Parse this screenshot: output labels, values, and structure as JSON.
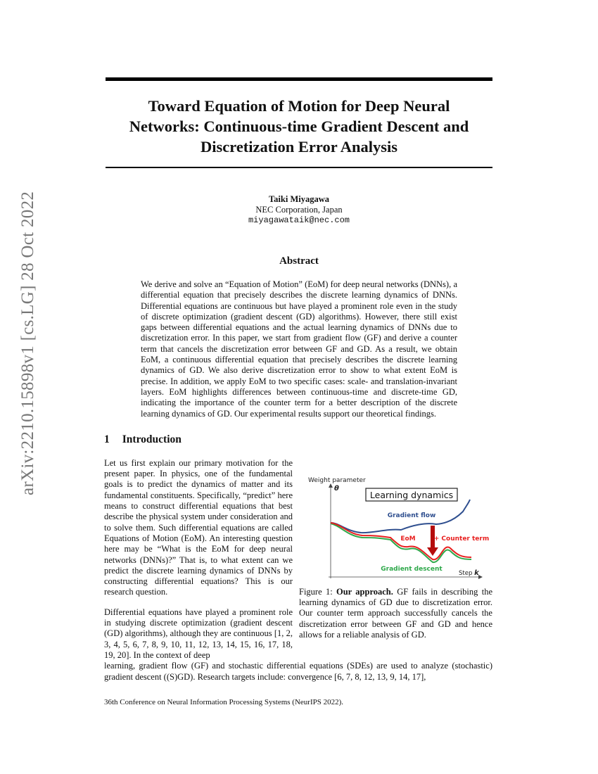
{
  "title_lines": [
    "Toward Equation of Motion for Deep Neural",
    "Networks: Continuous-time Gradient Descent and",
    "Discretization Error Analysis"
  ],
  "arxiv_stamp": "arXiv:2210.15898v1  [cs.LG]  28 Oct 2022",
  "author": {
    "name": "Taiki Miyagawa",
    "affiliation": "NEC Corporation, Japan",
    "email": "miyagawataik@nec.com"
  },
  "abstract": {
    "heading": "Abstract",
    "text": "We derive and solve an “Equation of Motion” (EoM) for deep neural networks (DNNs), a differential equation that precisely describes the discrete learning dynamics of DNNs. Differential equations are continuous but have played a prominent role even in the study of discrete optimization (gradient descent (GD) algorithms). However, there still exist gaps between differential equations and the actual learning dynamics of DNNs due to discretization error. In this paper, we start from gradient flow (GF) and derive a counter term that cancels the discretization error between GF and GD. As a result, we obtain EoM, a continuous differential equation that precisely describes the discrete learning dynamics of GD. We also derive discretization error to show to what extent EoM is precise. In addition, we apply EoM to two specific cases: scale- and translation-invariant layers. EoM highlights differences between continuous-time and discrete-time GD, indicating the importance of the counter term for a better description of the discrete learning dynamics of GD. Our experimental results support our theoretical findings."
  },
  "section": {
    "number": "1",
    "title": "Introduction"
  },
  "intro": {
    "p1": "Let us first explain our primary motivation for the present paper. In physics, one of the fundamental goals is to predict the dynamics of matter and its fundamental constituents. Specifically, “predict” here means to construct differential equations that best describe the physical system under consideration and to solve them. Such differential equations are called Equations of Motion (EoM). An interesting question here may be “What is the EoM for deep neural networks (DNNs)?” That is, to what extent can we predict the discrete learning dynamics of DNNs by constructing differential equations? This is our research question.",
    "p2a": "Differential equations have played a prominent role in studying discrete optimization (gradient descent (GD) algorithms), although they are continuous [1, 2, 3, 4, 5, 6, 7, 8, 9, 10, 11, 12, 13, 14, 15, 16, 17, 18, 19, 20]. In the context of deep",
    "p2b": "learning, gradient flow (GF) and stochastic differential equations (SDEs) are used to analyze (stochastic) gradient descent ((S)GD). Research targets include: convergence [6, 7, 8, 12, 13, 9, 14, 17],"
  },
  "figure": {
    "y_axis_label": "Weight parameter",
    "theta": "θ",
    "box_label": "Learning dynamics",
    "gf_label": "Gradient flow",
    "eom_label": "EoM",
    "counter_label": "+ Counter term",
    "gd_label": "Gradient descent",
    "x_axis_label": "Step ",
    "k": "k",
    "colors": {
      "gf": "#2f4f8f",
      "eom": "#e8201f",
      "gd": "#2ea84a",
      "arrow": "#b50d0d"
    },
    "caption_prefix": "Figure 1: ",
    "caption_bold": "Our approach.",
    "caption_text": " GF fails in describing the learning dynamics of GD due to discretization error. Our counter term approach successfully cancels the discretization error between GF and GD and hence allows for a reliable analysis of GD."
  },
  "footer": "36th Conference on Neural Information Processing Systems (NeurIPS 2022)."
}
